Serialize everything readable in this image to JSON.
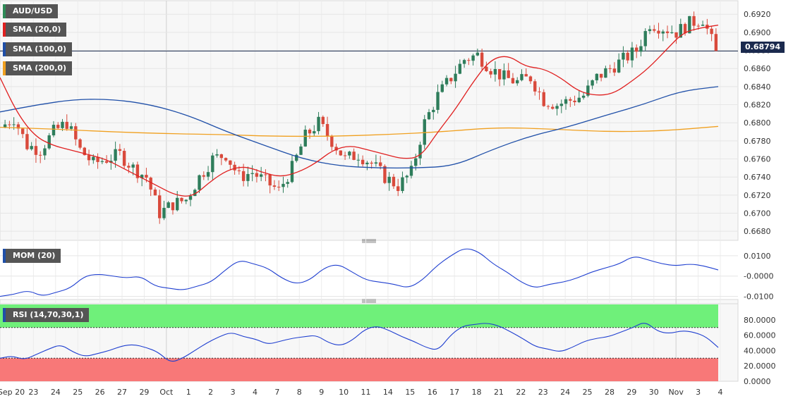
{
  "chart_data": [
    {
      "type": "candlestick",
      "symbol": "AUD/USD",
      "last_price": "0.68794",
      "indicators": [
        {
          "name": "SMA (20,0)",
          "color": "#e02020"
        },
        {
          "name": "SMA (100,0)",
          "color": "#1f4fa8"
        },
        {
          "name": "SMA (200,0)",
          "color": "#f0a020"
        }
      ],
      "ylim": [
        0.667,
        0.6935
      ],
      "y_ticks": [
        "0.6920",
        "0.6900",
        "0.6880",
        "0.6860",
        "0.6840",
        "0.6820",
        "0.6800",
        "0.6780",
        "0.6760",
        "0.6740",
        "0.6720",
        "0.6700",
        "0.6680"
      ],
      "x_ticks": [
        "Sep 20",
        "23",
        "24",
        "25",
        "26",
        "27",
        "29",
        "Oct",
        "1",
        "2",
        "3",
        "4",
        "7",
        "8",
        "9",
        "10",
        "11",
        "14",
        "15",
        "16",
        "17",
        "18",
        "21",
        "22",
        "23",
        "24",
        "25",
        "28",
        "29",
        "30",
        "Nov",
        "3",
        "4"
      ],
      "close_path": [
        0.6795,
        0.6805,
        0.6775,
        0.677,
        0.679,
        0.68,
        0.677,
        0.6755,
        0.676,
        0.6765,
        0.675,
        0.674,
        0.67,
        0.671,
        0.6715,
        0.674,
        0.676,
        0.6765,
        0.674,
        0.6745,
        0.6735,
        0.6725,
        0.675,
        0.6785,
        0.68,
        0.678,
        0.676,
        0.6765,
        0.6755,
        0.674,
        0.673,
        0.6745,
        0.68,
        0.683,
        0.685,
        0.687,
        0.6875,
        0.686,
        0.685,
        0.6845,
        0.685,
        0.6825,
        0.682,
        0.6825,
        0.683,
        0.685,
        0.686,
        0.687,
        0.688,
        0.691,
        0.6905,
        0.69,
        0.691,
        0.6915,
        0.6879
      ],
      "sma_20": [
        0.685,
        0.681,
        0.6785,
        0.6775,
        0.677,
        0.6765,
        0.676,
        0.675,
        0.674,
        0.673,
        0.672,
        0.6718,
        0.6735,
        0.6748,
        0.6752,
        0.6745,
        0.674,
        0.6745,
        0.6755,
        0.677,
        0.6775,
        0.677,
        0.6765,
        0.676,
        0.6762,
        0.679,
        0.6815,
        0.6845,
        0.687,
        0.6875,
        0.6862,
        0.686,
        0.685,
        0.6835,
        0.683,
        0.6832,
        0.6845,
        0.686,
        0.688,
        0.69,
        0.6905,
        0.6908
      ],
      "sma_100": [
        0.6812,
        0.682,
        0.6826,
        0.6826,
        0.682,
        0.6808,
        0.679,
        0.6775,
        0.676,
        0.6752,
        0.675,
        0.675,
        0.6752,
        0.677,
        0.6785,
        0.6795,
        0.6808,
        0.682,
        0.6835,
        0.684
      ],
      "sma_200": [
        0.6795,
        0.6793,
        0.679,
        0.6788,
        0.6787,
        0.6785,
        0.6785,
        0.6787,
        0.679,
        0.6795,
        0.6793,
        0.679,
        0.6791,
        0.6796
      ]
    },
    {
      "type": "line",
      "indicator": "MOM (20)",
      "y_ticks": [
        "0.0100",
        "-0.0000",
        "-0.0100"
      ],
      "ylim": [
        -0.0112,
        0.0155
      ],
      "series": [
        {
          "values": [
            -0.01,
            -0.009,
            -0.007,
            -0.01,
            -0.008,
            -0.006,
            0.0,
            0.001,
            0.0,
            -0.001,
            0.0,
            -0.005,
            -0.006,
            -0.007,
            -0.005,
            -0.003,
            0.003,
            0.008,
            0.006,
            0.004,
            -0.001,
            -0.004,
            -0.002,
            0.004,
            0.006,
            0.002,
            -0.002,
            -0.003,
            -0.004,
            -0.006,
            -0.002,
            0.005,
            0.01,
            0.014,
            0.012,
            0.006,
            0.002,
            -0.003,
            -0.006,
            -0.004,
            -0.003,
            -0.001,
            0.002,
            0.004,
            0.006,
            0.01,
            0.008,
            0.006,
            0.005,
            0.006,
            0.005,
            0.003
          ]
        }
      ]
    },
    {
      "type": "line",
      "indicator": "RSI (14,70,30,1)",
      "y_ticks": [
        "80.0000",
        "60.0000",
        "40.0000",
        "20.0000",
        "0.0000"
      ],
      "ylim": [
        0,
        100
      ],
      "overbought": 70,
      "oversold": 30,
      "series": [
        {
          "values": [
            30,
            33,
            28,
            35,
            42,
            48,
            38,
            32,
            36,
            40,
            46,
            48,
            44,
            38,
            24,
            30,
            40,
            50,
            58,
            64,
            58,
            55,
            48,
            52,
            56,
            58,
            60,
            50,
            46,
            54,
            68,
            72,
            66,
            58,
            52,
            44,
            40,
            60,
            72,
            74,
            76,
            72,
            64,
            55,
            45,
            42,
            38,
            44,
            52,
            56,
            58,
            64,
            70,
            78,
            65,
            62,
            66,
            64,
            58,
            44
          ]
        }
      ]
    }
  ]
}
